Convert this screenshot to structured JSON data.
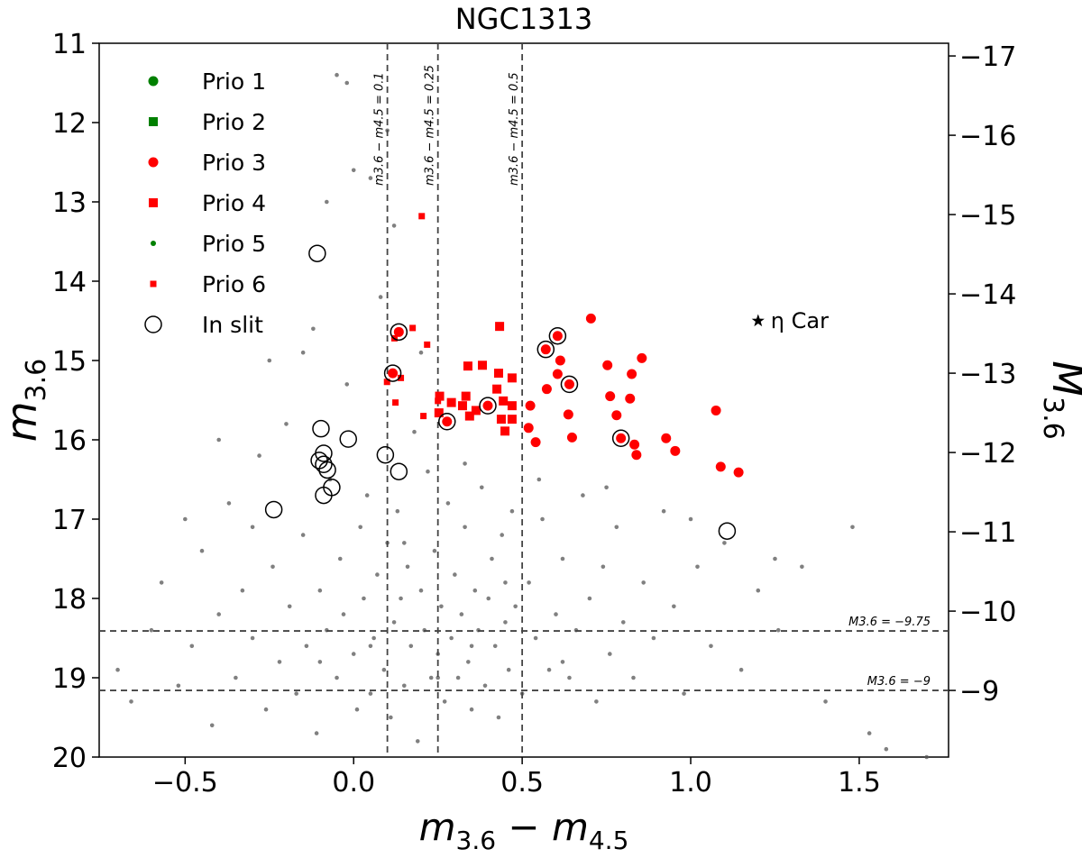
{
  "chart_data": {
    "type": "scatter",
    "title": "NGC1313",
    "x_label": [
      {
        "text": "m",
        "sub": "3.6"
      },
      {
        "text": " − m",
        "sub": "4.5"
      }
    ],
    "y_label": {
      "text": "m",
      "sub": "3.6"
    },
    "y2_label": {
      "text": "M",
      "sub": "3.6"
    },
    "xlim": [
      -0.755,
      1.765
    ],
    "ylim": [
      20,
      11
    ],
    "y2lim": [
      -8.16,
      -17.16
    ],
    "xticks": [
      {
        "value": -0.5,
        "label": "−0.5"
      },
      {
        "value": 0,
        "label": "0.0"
      },
      0.5,
      {
        "value": 1,
        "label": "1.0"
      },
      1.5
    ],
    "yticks": [
      11,
      12,
      13,
      14,
      15,
      16,
      17,
      18,
      19,
      20
    ],
    "y2ticks": [
      {
        "value": -17,
        "label": "−17"
      },
      {
        "value": -16,
        "label": "−16"
      },
      {
        "value": -15,
        "label": "−15"
      },
      {
        "value": -14,
        "label": "−14"
      },
      {
        "value": -13,
        "label": "−13"
      },
      {
        "value": -12,
        "label": "−12"
      },
      {
        "value": -11,
        "label": "−11"
      },
      {
        "value": -10,
        "label": "−10"
      },
      {
        "value": -9,
        "label": "−9"
      }
    ],
    "vlines": [
      {
        "value": 0.1,
        "label": "m3.6 − m4.5 = 0.1"
      },
      {
        "value": 0.25,
        "label": "m3.6 − m4.5 = 0.25"
      },
      {
        "value": 0.5,
        "label": "m3.6 − m4.5 = 0.5"
      }
    ],
    "hlines": [
      {
        "value": -9.75,
        "label": "M3.6 = −9.75"
      },
      {
        "value": -9,
        "label": "M3.6 = −9"
      }
    ],
    "legend": "upper left",
    "series": [
      {
        "name": "Prio 1",
        "color": "#008000",
        "marker": "circle",
        "points": []
      },
      {
        "name": "Prio 2",
        "color": "#008000",
        "marker": "square",
        "points": []
      },
      {
        "name": "Prio 3",
        "color": "#ff0000",
        "marker": "circle",
        "points": [
          [
            0.134,
            14.64
          ],
          [
            0.116,
            15.16
          ],
          [
            0.277,
            15.77
          ],
          [
            0.398,
            15.57
          ],
          [
            0.57,
            14.86
          ],
          [
            0.605,
            14.69
          ],
          [
            0.613,
            15.0
          ],
          [
            0.64,
            15.3
          ],
          [
            0.704,
            14.47
          ],
          [
            0.753,
            15.06
          ],
          [
            0.761,
            15.45
          ],
          [
            0.78,
            15.69
          ],
          [
            0.82,
            15.48
          ],
          [
            0.825,
            15.17
          ],
          [
            0.855,
            14.97
          ],
          [
            0.793,
            15.98
          ],
          [
            0.833,
            16.06
          ],
          [
            0.927,
            15.98
          ],
          [
            0.954,
            16.14
          ],
          [
            0.839,
            16.19
          ],
          [
            1.075,
            15.63
          ],
          [
            1.089,
            16.34
          ],
          [
            1.142,
            16.41
          ],
          [
            0.524,
            15.57
          ],
          [
            0.54,
            16.03
          ],
          [
            0.637,
            15.68
          ],
          [
            0.648,
            15.97
          ],
          [
            0.519,
            15.85
          ],
          [
            0.573,
            15.36
          ],
          [
            0.605,
            15.17
          ]
        ]
      },
      {
        "name": "Prio 4",
        "color": "#ff0000",
        "marker": "square",
        "points": [
          [
            0.433,
            14.57
          ],
          [
            0.339,
            15.07
          ],
          [
            0.382,
            15.06
          ],
          [
            0.43,
            15.16
          ],
          [
            0.47,
            15.22
          ],
          [
            0.425,
            15.36
          ],
          [
            0.333,
            15.45
          ],
          [
            0.255,
            15.45
          ],
          [
            0.29,
            15.53
          ],
          [
            0.323,
            15.57
          ],
          [
            0.363,
            15.63
          ],
          [
            0.444,
            15.51
          ],
          [
            0.47,
            15.57
          ],
          [
            0.438,
            15.74
          ],
          [
            0.47,
            15.74
          ],
          [
            0.449,
            15.89
          ],
          [
            0.344,
            15.7
          ],
          [
            0.253,
            15.66
          ]
        ]
      },
      {
        "name": "Prio 5",
        "color": "#008000",
        "marker": "dot",
        "points": []
      },
      {
        "name": "Prio 6",
        "color": "#ff0000",
        "marker": "small-square",
        "points": [
          [
            0.202,
            13.18
          ],
          [
            0.175,
            14.59
          ],
          [
            0.218,
            14.8
          ],
          [
            0.121,
            14.72
          ],
          [
            0.124,
            15.53
          ],
          [
            0.14,
            15.22
          ],
          [
            0.099,
            15.27
          ],
          [
            0.207,
            15.7
          ],
          [
            0.25,
            15.51
          ]
        ]
      },
      {
        "name": "In slit",
        "color": "#000000",
        "marker": "ring",
        "points": [
          [
            -0.108,
            13.65
          ],
          [
            -0.237,
            16.88
          ],
          [
            -0.097,
            15.86
          ],
          [
            -0.016,
            15.99
          ],
          [
            -0.089,
            16.17
          ],
          [
            -0.102,
            16.26
          ],
          [
            -0.089,
            16.31
          ],
          [
            -0.078,
            16.38
          ],
          [
            -0.065,
            16.6
          ],
          [
            -0.089,
            16.7
          ],
          [
            0.094,
            16.19
          ],
          [
            0.134,
            16.4
          ],
          [
            1.108,
            17.15
          ],
          [
            0.134,
            14.64
          ],
          [
            0.116,
            15.16
          ],
          [
            0.277,
            15.77
          ],
          [
            0.398,
            15.57
          ],
          [
            0.57,
            14.86
          ],
          [
            0.605,
            14.69
          ],
          [
            0.64,
            15.3
          ],
          [
            0.793,
            15.98
          ]
        ]
      }
    ],
    "reference": {
      "label": "η Car",
      "color": "#000000",
      "marker": "star",
      "point": [
        1.2,
        14.5
      ]
    },
    "background": {
      "color": "#555555",
      "points": [
        [
          -0.7,
          18.9
        ],
        [
          -0.66,
          19.3
        ],
        [
          -0.6,
          18.4
        ],
        [
          -0.57,
          17.8
        ],
        [
          -0.52,
          19.1
        ],
        [
          -0.48,
          18.6
        ],
        [
          -0.45,
          17.4
        ],
        [
          -0.42,
          19.6
        ],
        [
          -0.4,
          18.2
        ],
        [
          -0.37,
          16.8
        ],
        [
          -0.35,
          19.0
        ],
        [
          -0.33,
          17.9
        ],
        [
          -0.3,
          18.5
        ],
        [
          -0.28,
          16.2
        ],
        [
          -0.26,
          19.4
        ],
        [
          -0.24,
          17.6
        ],
        [
          -0.22,
          18.8
        ],
        [
          -0.2,
          15.8
        ],
        [
          -0.19,
          18.1
        ],
        [
          -0.17,
          19.2
        ],
        [
          -0.15,
          17.2
        ],
        [
          -0.14,
          18.6
        ],
        [
          -0.12,
          14.6
        ],
        [
          -0.11,
          19.7
        ],
        [
          -0.1,
          17.9
        ],
        [
          -0.08,
          18.4
        ],
        [
          -0.07,
          16.5
        ],
        [
          -0.05,
          19.0
        ],
        [
          -0.04,
          17.5
        ],
        [
          -0.03,
          18.2
        ],
        [
          -0.02,
          15.3
        ],
        [
          0.0,
          18.7
        ],
        [
          0.01,
          19.4
        ],
        [
          0.02,
          17.1
        ],
        [
          0.03,
          18.0
        ],
        [
          0.04,
          16.7
        ],
        [
          0.05,
          19.2
        ],
        [
          0.06,
          18.5
        ],
        [
          0.07,
          17.7
        ],
        [
          0.08,
          14.2
        ],
        [
          0.09,
          18.9
        ],
        [
          0.1,
          17.3
        ],
        [
          0.11,
          19.5
        ],
        [
          0.12,
          18.3
        ],
        [
          0.13,
          16.9
        ],
        [
          0.14,
          18.0
        ],
        [
          0.15,
          19.1
        ],
        [
          0.16,
          17.6
        ],
        [
          0.17,
          18.6
        ],
        [
          0.18,
          15.9
        ],
        [
          0.19,
          19.8
        ],
        [
          0.2,
          17.9
        ],
        [
          0.21,
          18.4
        ],
        [
          0.22,
          16.4
        ],
        [
          0.23,
          19.0
        ],
        [
          0.24,
          17.4
        ],
        [
          0.25,
          18.7
        ],
        [
          0.26,
          18.1
        ],
        [
          0.27,
          19.3
        ],
        [
          0.28,
          16.8
        ],
        [
          0.29,
          18.5
        ],
        [
          0.3,
          17.7
        ],
        [
          0.31,
          19.0
        ],
        [
          0.32,
          18.2
        ],
        [
          0.33,
          17.1
        ],
        [
          0.34,
          18.8
        ],
        [
          0.35,
          19.4
        ],
        [
          0.36,
          17.9
        ],
        [
          0.37,
          18.4
        ],
        [
          0.38,
          16.6
        ],
        [
          0.39,
          19.1
        ],
        [
          0.4,
          18.0
        ],
        [
          0.41,
          17.5
        ],
        [
          0.42,
          18.6
        ],
        [
          0.43,
          19.5
        ],
        [
          0.44,
          17.2
        ],
        [
          0.45,
          18.3
        ],
        [
          0.46,
          18.9
        ],
        [
          0.47,
          16.9
        ],
        [
          0.48,
          18.1
        ],
        [
          0.5,
          19.2
        ],
        [
          0.52,
          17.8
        ],
        [
          0.54,
          18.5
        ],
        [
          0.56,
          17.0
        ],
        [
          0.58,
          18.9
        ],
        [
          0.6,
          18.2
        ],
        [
          0.62,
          17.5
        ],
        [
          0.64,
          19.0
        ],
        [
          0.66,
          18.4
        ],
        [
          0.68,
          16.7
        ],
        [
          0.7,
          18.0
        ],
        [
          0.72,
          19.3
        ],
        [
          0.74,
          17.6
        ],
        [
          0.76,
          18.7
        ],
        [
          0.78,
          17.1
        ],
        [
          0.8,
          18.3
        ],
        [
          0.83,
          19.0
        ],
        [
          0.86,
          17.8
        ],
        [
          0.89,
          18.5
        ],
        [
          0.92,
          16.9
        ],
        [
          0.95,
          18.1
        ],
        [
          0.98,
          19.2
        ],
        [
          1.02,
          17.6
        ],
        [
          1.06,
          18.6
        ],
        [
          1.1,
          17.3
        ],
        [
          1.15,
          18.9
        ],
        [
          1.2,
          17.9
        ],
        [
          1.26,
          18.4
        ],
        [
          1.33,
          17.6
        ],
        [
          1.4,
          19.3
        ],
        [
          1.48,
          17.1
        ],
        [
          1.53,
          19.7
        ],
        [
          1.58,
          19.9
        ],
        [
          1.7,
          20.0
        ],
        [
          -0.05,
          11.4
        ],
        [
          0.05,
          12.7
        ],
        [
          -0.08,
          13.0
        ],
        [
          0.0,
          12.6
        ],
        [
          0.12,
          13.3
        ],
        [
          -0.25,
          15.0
        ],
        [
          -0.4,
          16.0
        ],
        [
          -0.5,
          17.0
        ],
        [
          0.2,
          14.9
        ],
        [
          -0.15,
          14.9
        ],
        [
          0.1,
          12.1
        ],
        [
          -0.02,
          11.5
        ],
        [
          0.33,
          16.3
        ],
        [
          0.55,
          16.5
        ],
        [
          0.75,
          16.6
        ],
        [
          1.0,
          17.0
        ],
        [
          1.25,
          17.5
        ],
        [
          0.15,
          17.3
        ],
        [
          0.05,
          18.6
        ],
        [
          0.25,
          19.0
        ],
        [
          0.35,
          18.6
        ],
        [
          -0.1,
          18.8
        ],
        [
          0.45,
          17.8
        ],
        [
          0.62,
          18.8
        ],
        [
          -0.3,
          17.1
        ]
      ]
    }
  }
}
